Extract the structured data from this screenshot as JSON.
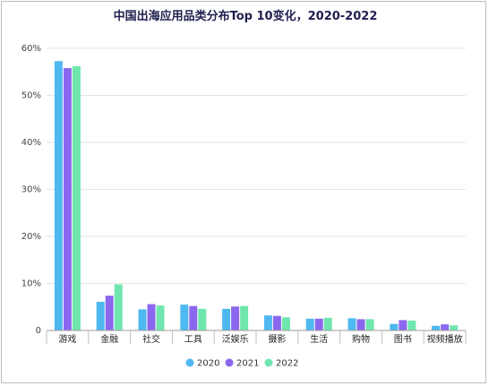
{
  "chart_data": {
    "type": "bar",
    "title": "中国出海应用品类分布Top 10变化，2020-2022",
    "categories": [
      "游戏",
      "金融",
      "社交",
      "工具",
      "泛娱乐",
      "摄影",
      "生活",
      "购物",
      "图书",
      "视频播放"
    ],
    "series": [
      {
        "name": "2020",
        "color": "#4fb8f0",
        "values": [
          57.3,
          6.1,
          4.5,
          5.5,
          4.6,
          3.2,
          2.5,
          2.6,
          1.4,
          1.0
        ]
      },
      {
        "name": "2021",
        "color": "#8b67ef",
        "values": [
          55.8,
          7.4,
          5.6,
          5.2,
          5.1,
          3.1,
          2.5,
          2.4,
          2.2,
          1.3
        ]
      },
      {
        "name": "2022",
        "color": "#6fe6ad",
        "values": [
          56.2,
          9.8,
          5.3,
          4.6,
          5.2,
          2.8,
          2.7,
          2.4,
          2.1,
          1.1
        ]
      }
    ],
    "y_ticks": [
      "0",
      "10%",
      "20%",
      "30%",
      "40%",
      "50%",
      "60%"
    ],
    "y_tick_values": [
      0,
      10,
      20,
      30,
      40,
      50,
      60
    ],
    "ylim": [
      0,
      60
    ],
    "grid": true,
    "legend_position": "bottom-center",
    "xlabel": "",
    "ylabel": ""
  }
}
